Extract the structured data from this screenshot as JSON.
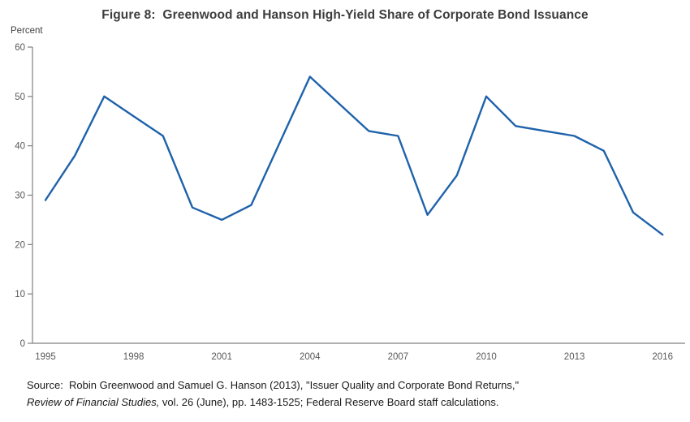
{
  "title": "Figure 8:  Greenwood and Hanson High-Yield Share of Corporate Bond Issuance",
  "y_axis_unit": "Percent",
  "source": {
    "line1": "Source:  Robin Greenwood and Samuel G. Hanson (2013), \"Issuer Quality and Corporate Bond Returns,\"",
    "line2_journal": "Review of Financial Studies,",
    "line2_rest": " vol. 26 (June), pp. 1483-1525; Federal Reserve Board staff calculations."
  },
  "colors": {
    "line": "#1e62ab",
    "axis": "#7f7f7f",
    "tick_label": "#595959",
    "title_text": "#3d3d3d",
    "source_text": "#1a1a1a"
  },
  "chart_data": {
    "type": "line",
    "title": "Figure 8: Greenwood and Hanson High-Yield Share of Corporate Bond Issuance",
    "ylabel": "Percent",
    "xlabel": "",
    "ylim": [
      0,
      60
    ],
    "ytick_interval": 10,
    "grid": false,
    "legend": "none",
    "xticks_shown": [
      1995,
      1998,
      2001,
      2004,
      2007,
      2010,
      2013,
      2016
    ],
    "x": [
      1995,
      1996,
      1997,
      1998,
      1999,
      2000,
      2001,
      2002,
      2003,
      2004,
      2005,
      2006,
      2007,
      2008,
      2009,
      2010,
      2011,
      2012,
      2013,
      2014,
      2015,
      2016
    ],
    "values": [
      29,
      38,
      50,
      46,
      42,
      27.5,
      25,
      28,
      41,
      54,
      48.5,
      43,
      42,
      26,
      34,
      50,
      44,
      43,
      42,
      39,
      26.5,
      22
    ]
  }
}
